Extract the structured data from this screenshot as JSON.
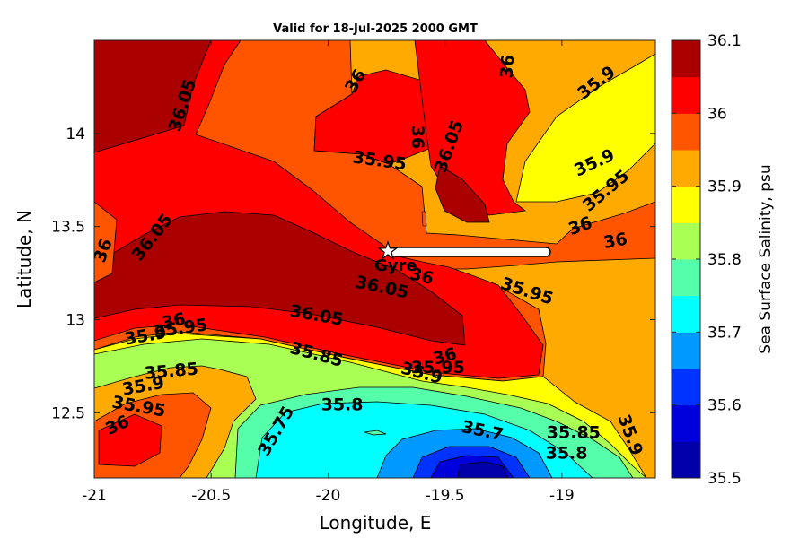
{
  "chart_data": {
    "type": "contour",
    "title": "Valid for 18-Jul-2025 2000 GMT",
    "xlabel": "Longitude, E",
    "ylabel": "Latitude, N",
    "xlim": [
      -21.0,
      -18.6
    ],
    "ylim": [
      12.15,
      14.5
    ],
    "x_ticks": [
      -21,
      -20.5,
      -20,
      -19.5,
      -19
    ],
    "x_tick_labels": [
      "-21",
      "-20.5",
      "-20",
      "-19.5",
      "-19"
    ],
    "y_ticks": [
      12.5,
      13,
      13.5,
      14
    ],
    "y_tick_labels": [
      "12.5",
      "13",
      "13.5",
      "14"
    ],
    "colorbar": {
      "label": "Sea Surface Salinity, psu",
      "min": 35.5,
      "max": 36.1,
      "ticks": [
        35.5,
        35.6,
        35.7,
        35.8,
        35.9,
        36,
        36.1
      ],
      "tick_labels": [
        "35.5",
        "35.6",
        "35.7",
        "35.8",
        "35.9",
        "36",
        "36.1"
      ],
      "colors": [
        "#0000aa",
        "#0000dd",
        "#0033ff",
        "#0099ff",
        "#00ffff",
        "#55ffaa",
        "#aaff55",
        "#ffff00",
        "#ffaa00",
        "#ff5500",
        "#ff0000",
        "#aa0000"
      ]
    },
    "contour_labels": [
      {
        "text": "36.05",
        "lon": -20.62,
        "lat": 14.15,
        "angle": -72
      },
      {
        "text": "36",
        "lon": -19.88,
        "lat": 14.28,
        "angle": -60
      },
      {
        "text": "36",
        "lon": -19.23,
        "lat": 14.36,
        "angle": -85
      },
      {
        "text": "35.9",
        "lon": -18.85,
        "lat": 14.27,
        "angle": -38
      },
      {
        "text": "36",
        "lon": -19.62,
        "lat": 13.98,
        "angle": 90
      },
      {
        "text": "36.05",
        "lon": -19.48,
        "lat": 13.93,
        "angle": -70
      },
      {
        "text": "35.95",
        "lon": -19.78,
        "lat": 13.85,
        "angle": 8
      },
      {
        "text": "35.9",
        "lon": -18.86,
        "lat": 13.84,
        "angle": -25
      },
      {
        "text": "35.95",
        "lon": -18.81,
        "lat": 13.69,
        "angle": -40
      },
      {
        "text": "36",
        "lon": -18.92,
        "lat": 13.5,
        "angle": -20
      },
      {
        "text": "36",
        "lon": -18.77,
        "lat": 13.42,
        "angle": -10
      },
      {
        "text": "36",
        "lon": -20.96,
        "lat": 13.37,
        "angle": -70
      },
      {
        "text": "36.05",
        "lon": -20.75,
        "lat": 13.44,
        "angle": -52
      },
      {
        "text": "36",
        "lon": -19.6,
        "lat": 13.23,
        "angle": 15
      },
      {
        "text": "36.05",
        "lon": -19.77,
        "lat": 13.17,
        "angle": 12
      },
      {
        "text": "35.95",
        "lon": -19.15,
        "lat": 13.15,
        "angle": 18
      },
      {
        "text": "36.05",
        "lon": -20.05,
        "lat": 13.02,
        "angle": 10
      },
      {
        "text": "36",
        "lon": -20.66,
        "lat": 12.99,
        "angle": -12
      },
      {
        "text": "35.95",
        "lon": -20.63,
        "lat": 12.95,
        "angle": -8
      },
      {
        "text": "35.9",
        "lon": -20.78,
        "lat": 12.91,
        "angle": -10
      },
      {
        "text": "35.85",
        "lon": -20.05,
        "lat": 12.81,
        "angle": 15
      },
      {
        "text": "36",
        "lon": -19.5,
        "lat": 12.8,
        "angle": -15
      },
      {
        "text": "35.95",
        "lon": -19.53,
        "lat": 12.74,
        "angle": 0
      },
      {
        "text": "35.9",
        "lon": -19.6,
        "lat": 12.71,
        "angle": 15
      },
      {
        "text": "35.85",
        "lon": -20.67,
        "lat": 12.72,
        "angle": -5
      },
      {
        "text": "35.9",
        "lon": -20.79,
        "lat": 12.64,
        "angle": -10
      },
      {
        "text": "35.95",
        "lon": -20.81,
        "lat": 12.53,
        "angle": 10
      },
      {
        "text": "36",
        "lon": -20.9,
        "lat": 12.43,
        "angle": -25
      },
      {
        "text": "35.8",
        "lon": -19.94,
        "lat": 12.54,
        "angle": 0
      },
      {
        "text": "35.75",
        "lon": -20.22,
        "lat": 12.4,
        "angle": -60
      },
      {
        "text": "35.7",
        "lon": -19.34,
        "lat": 12.4,
        "angle": 12
      },
      {
        "text": "35.85",
        "lon": -18.95,
        "lat": 12.39,
        "angle": 0
      },
      {
        "text": "35.8",
        "lon": -18.98,
        "lat": 12.28,
        "angle": 0
      },
      {
        "text": "35.9",
        "lon": -18.71,
        "lat": 12.38,
        "angle": 70
      }
    ],
    "marker": {
      "label": "Gyre",
      "lon": -19.75,
      "lat": 13.37
    }
  }
}
